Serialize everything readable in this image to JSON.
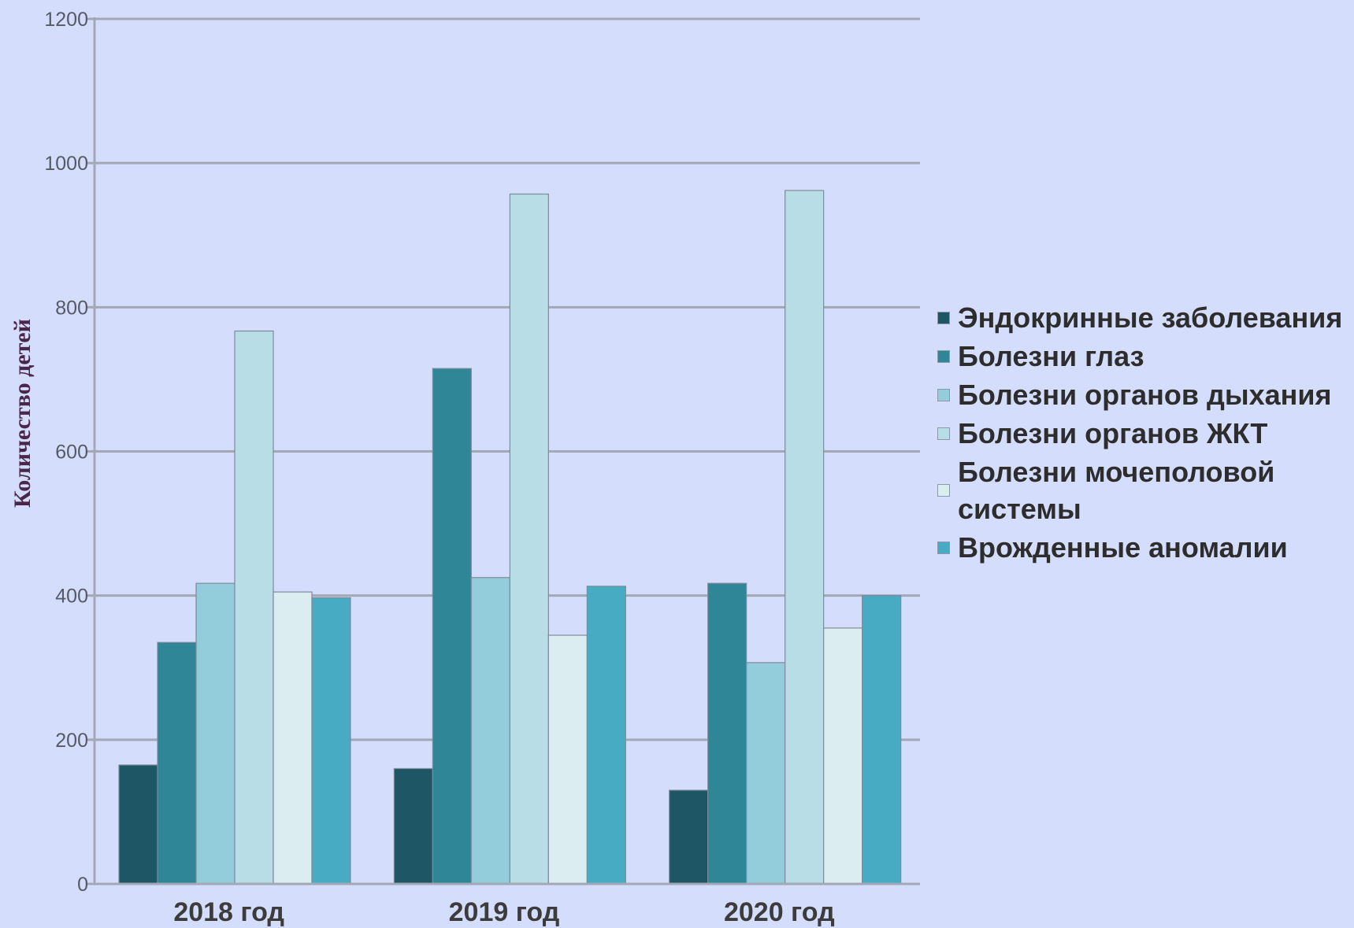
{
  "chart_data": {
    "type": "bar",
    "ylabel": "Количество детей",
    "xlabel": "",
    "ylim": [
      0,
      1200
    ],
    "yticks": [
      "0",
      "200",
      "400",
      "600",
      "800",
      "1000",
      "1200"
    ],
    "ytick_values": [
      0,
      200,
      400,
      600,
      800,
      1000,
      1200
    ],
    "categories": [
      "2018 год",
      "2019 год",
      "2020 год"
    ],
    "grid": "horizontal",
    "legend_position": "right",
    "series": [
      {
        "name": "Эндокринные заболевания",
        "color": "#1f5666",
        "values": [
          165,
          160,
          130
        ]
      },
      {
        "name": "Болезни глаз",
        "color": "#2e8696",
        "values": [
          335,
          715,
          417
        ]
      },
      {
        "name": "Болезни органов дыхания",
        "color": "#93cddb",
        "values": [
          417,
          425,
          307
        ]
      },
      {
        "name": "Болезни органов ЖКТ",
        "color": "#b9dde6",
        "values": [
          767,
          957,
          962
        ]
      },
      {
        "name": "Болезни мочеполовой системы",
        "color": "#dcedf2",
        "values": [
          405,
          345,
          355
        ]
      },
      {
        "name": "Врожденные аномалии",
        "color": "#47abc3",
        "values": [
          397,
          413,
          400
        ]
      }
    ]
  }
}
